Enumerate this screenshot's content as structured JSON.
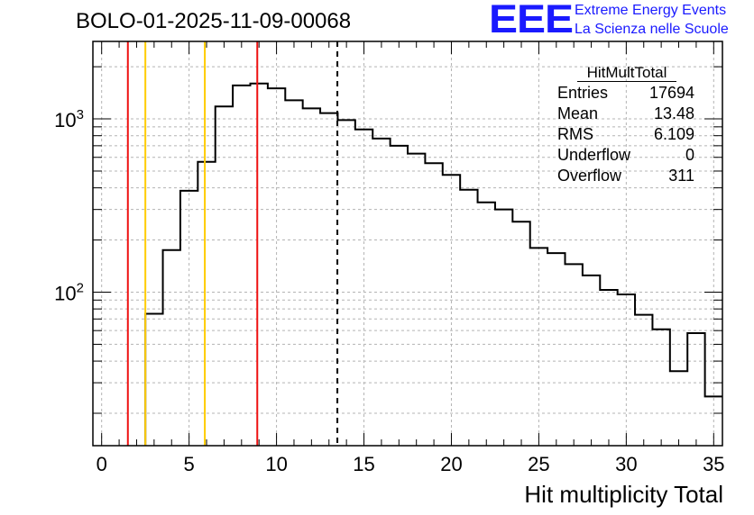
{
  "title": "BOLO-01-2025-11-09-00068",
  "logo": {
    "mark": "EEE",
    "line1": "Extreme Energy Events",
    "line2": "La Scienza nelle Scuole",
    "color": "#1a1aff"
  },
  "stats": {
    "name": "HitMultTotal",
    "rows": [
      {
        "label": "Entries",
        "value": "17694"
      },
      {
        "label": "Mean",
        "value": "13.48"
      },
      {
        "label": "RMS",
        "value": "6.109"
      },
      {
        "label": "Underflow",
        "value": "0"
      },
      {
        "label": "Overflow",
        "value": "311"
      }
    ]
  },
  "chart_data": {
    "type": "histogram",
    "title": "BOLO-01-2025-11-09-00068",
    "xlabel": "Hit multiplicity Total",
    "ylabel": "",
    "xlim": [
      -0.5,
      35.5
    ],
    "ylim": [
      13,
      2800
    ],
    "yscale": "log",
    "grid": true,
    "bin_edges_start": 2.5,
    "bin_width": 1,
    "counts": [
      75,
      175,
      385,
      565,
      1180,
      1560,
      1600,
      1500,
      1280,
      1150,
      1080,
      985,
      870,
      770,
      700,
      630,
      555,
      475,
      390,
      330,
      300,
      255,
      180,
      168,
      145,
      125,
      103,
      97,
      74,
      61,
      35,
      58,
      25
    ],
    "x_ticks": [
      "0",
      "5",
      "10",
      "15",
      "20",
      "25",
      "30",
      "35"
    ],
    "x_tick_values": [
      0,
      5,
      10,
      15,
      20,
      25,
      30,
      35
    ],
    "y_major_ticks": [
      {
        "value": 100,
        "base": "10",
        "exp": "2"
      },
      {
        "value": 1000,
        "base": "10",
        "exp": "3"
      }
    ],
    "vertical_lines": [
      {
        "x": 1.5,
        "color": "#ee1111",
        "style": "solid"
      },
      {
        "x": 2.5,
        "color": "#ffcc00",
        "style": "solid"
      },
      {
        "x": 5.9,
        "color": "#ffcc00",
        "style": "solid"
      },
      {
        "x": 8.9,
        "color": "#ee1111",
        "style": "solid"
      },
      {
        "x": 13.48,
        "color": "#000000",
        "style": "dashed"
      }
    ],
    "line_color": "#000000",
    "grid_color": "#b4b4b4"
  }
}
